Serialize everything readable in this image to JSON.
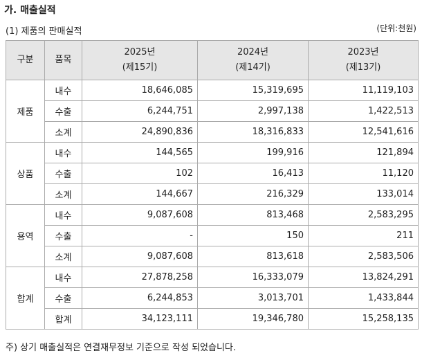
{
  "header": {
    "title": "가. 매출실적",
    "subtitle": "(1) 제품의 판매실적",
    "unit": "(단위:천원)"
  },
  "table": {
    "columns": [
      "구분",
      "품목",
      {
        "year": "2025년",
        "period": "(제15기)"
      },
      {
        "year": "2024년",
        "period": "(제14기)"
      },
      {
        "year": "2023년",
        "period": "(제13기)"
      }
    ],
    "groups": [
      {
        "name": "제품",
        "rows": [
          [
            "내수",
            "18,646,085",
            "15,319,695",
            "11,119,103"
          ],
          [
            "수출",
            "6,244,751",
            "2,997,138",
            "1,422,513"
          ],
          [
            "소계",
            "24,890,836",
            "18,316,833",
            "12,541,616"
          ]
        ]
      },
      {
        "name": "상품",
        "rows": [
          [
            "내수",
            "144,565",
            "199,916",
            "121,894"
          ],
          [
            "수출",
            "102",
            "16,413",
            "11,120"
          ],
          [
            "소계",
            "144,667",
            "216,329",
            "133,014"
          ]
        ]
      },
      {
        "name": "용역",
        "rows": [
          [
            "내수",
            "9,087,608",
            "813,468",
            "2,583,295"
          ],
          [
            "수출",
            "-",
            "150",
            "211"
          ],
          [
            "소계",
            "9,087,608",
            "813,618",
            "2,583,506"
          ]
        ]
      },
      {
        "name": "합계",
        "rows": [
          [
            "내수",
            "27,878,258",
            "16,333,079",
            "13,824,291"
          ],
          [
            "수출",
            "6,244,853",
            "3,013,701",
            "1,433,844"
          ],
          [
            "합계",
            "34,123,111",
            "19,346,780",
            "15,258,135"
          ]
        ]
      }
    ]
  },
  "footnote": "주) 상기 매출실적은 연결재무정보 기준으로 작성 되었습니다."
}
